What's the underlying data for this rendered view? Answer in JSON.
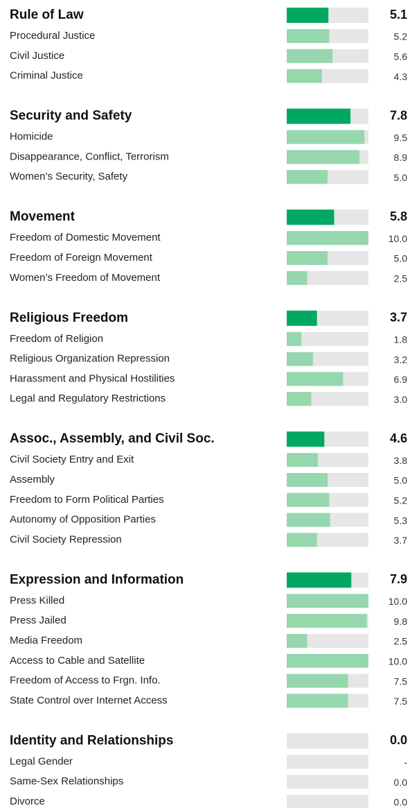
{
  "xlim": [
    0,
    10
  ],
  "colors": {
    "header": "#00a862",
    "item": "#96d7ae",
    "track": "#e6e6e6"
  },
  "sections": [
    {
      "title": "Rule of Law",
      "value": 5.1,
      "items": [
        {
          "label": "Procedural Justice",
          "value": 5.2
        },
        {
          "label": "Civil Justice",
          "value": 5.6
        },
        {
          "label": "Criminal Justice",
          "value": 4.3
        }
      ]
    },
    {
      "title": "Security and Safety",
      "value": 7.8,
      "items": [
        {
          "label": "Homicide",
          "value": 9.5
        },
        {
          "label": "Disappearance, Conflict, Terrorism",
          "value": 8.9
        },
        {
          "label": "Women’s Security, Safety",
          "value": 5,
          "value_label": "5.0"
        }
      ]
    },
    {
      "title": "Movement",
      "value": 5.8,
      "items": [
        {
          "label": "Freedom of Domestic Movement",
          "value": 10,
          "value_label": "10.0"
        },
        {
          "label": "Freedom of Foreign Movement",
          "value": 5,
          "value_label": "5.0"
        },
        {
          "label": "Women’s Freedom of Movement",
          "value": 2.5
        }
      ]
    },
    {
      "title": "Religious Freedom",
      "value": 3.7,
      "items": [
        {
          "label": "Freedom of Religion",
          "value": 1.8
        },
        {
          "label": "Religious Organization Repression",
          "value": 3.2
        },
        {
          "label": "Harassment and Physical Hostilities",
          "value": 6.9
        },
        {
          "label": "Legal and Regulatory Restrictions",
          "value": 3,
          "value_label": "3.0"
        }
      ]
    },
    {
      "title": "Assoc., Assembly, and Civil Soc.",
      "value": 4.6,
      "items": [
        {
          "label": "Civil Society Entry and Exit",
          "value": 3.8
        },
        {
          "label": "Assembly",
          "value": 5,
          "value_label": "5.0"
        },
        {
          "label": "Freedom to Form Political Parties",
          "value": 5.2
        },
        {
          "label": "Autonomy of Opposition Parties",
          "value": 5.3
        },
        {
          "label": "Civil Society Repression",
          "value": 3.7
        }
      ]
    },
    {
      "title": "Expression and Information",
      "value": 7.9,
      "items": [
        {
          "label": "Press Killed",
          "value": 10,
          "value_label": "10.0"
        },
        {
          "label": "Press Jailed",
          "value": 9.8
        },
        {
          "label": "Media Freedom",
          "value": 2.5
        },
        {
          "label": "Access to Cable and Satellite",
          "value": 10,
          "value_label": "10.0"
        },
        {
          "label": "Freedom of Access to Frgn. Info.",
          "value": 7.5
        },
        {
          "label": "State Control over Internet Access",
          "value": 7.5
        }
      ]
    },
    {
      "title": "Identity and Relationships",
      "value": 0,
      "value_label": "0.0",
      "items": [
        {
          "label": "Legal Gender",
          "value": null,
          "value_label": "-"
        },
        {
          "label": "Same-Sex Relationships",
          "value": 0,
          "value_label": "0.0"
        },
        {
          "label": "Divorce",
          "value": 0,
          "value_label": "0.0"
        }
      ]
    }
  ]
}
